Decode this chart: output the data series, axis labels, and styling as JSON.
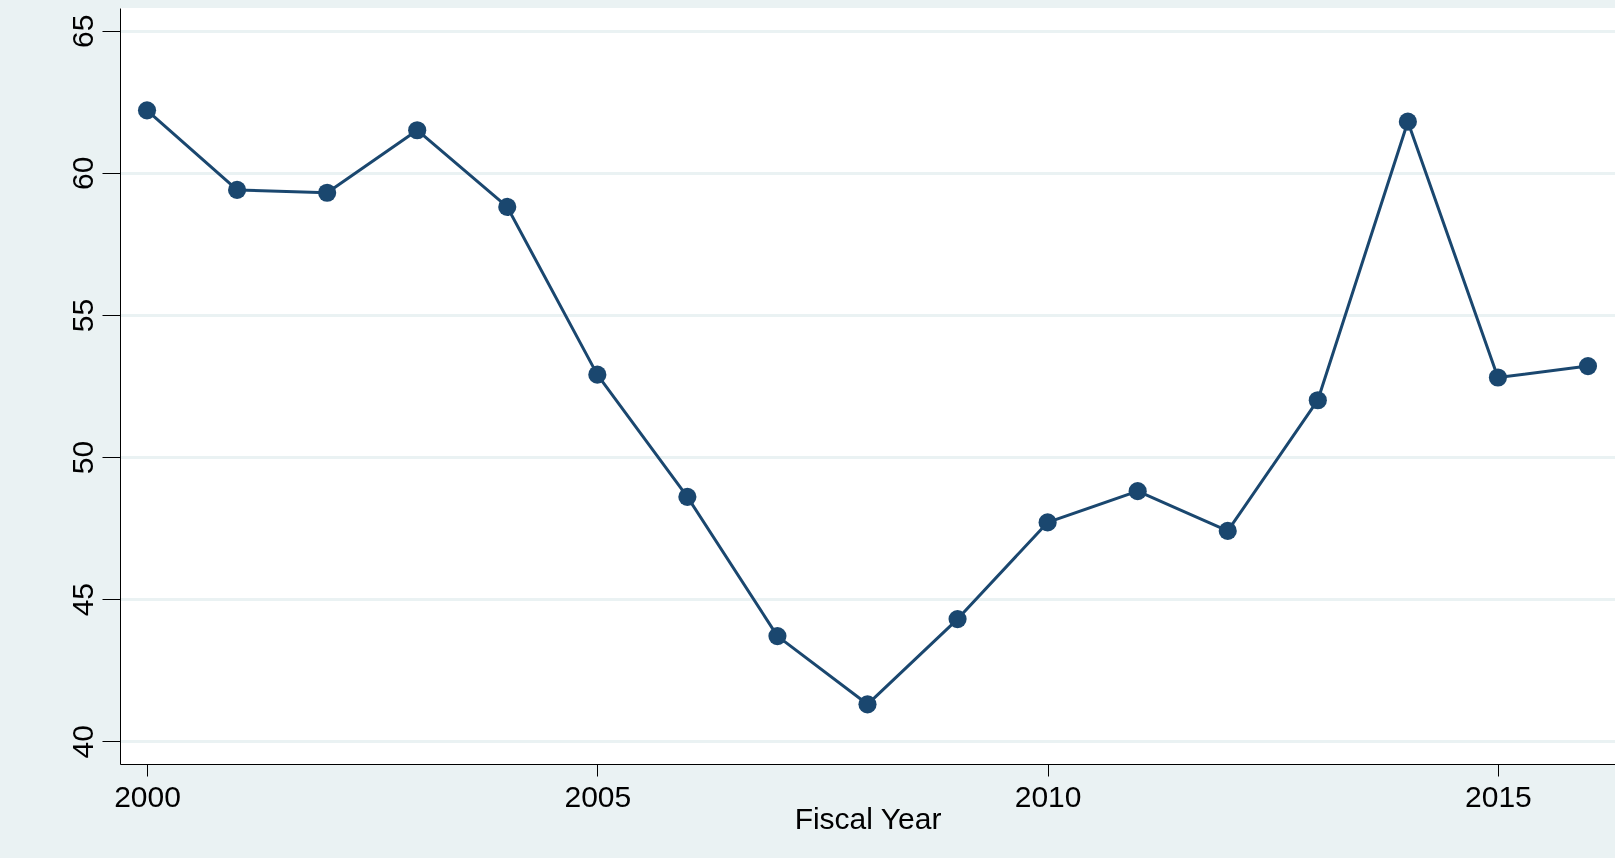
{
  "chart_data": {
    "type": "line",
    "xlabel": "Fiscal Year",
    "x": [
      2000,
      2001,
      2002,
      2003,
      2004,
      2005,
      2006,
      2007,
      2008,
      2009,
      2010,
      2011,
      2012,
      2013,
      2014,
      2015,
      2016
    ],
    "series": [
      {
        "color": "#1a476f",
        "values": [
          62.2,
          59.4,
          59.3,
          61.5,
          58.8,
          52.9,
          48.6,
          43.7,
          41.3,
          44.3,
          47.7,
          48.8,
          47.4,
          52.0,
          61.8,
          52.8,
          53.2
        ]
      }
    ],
    "xlim": [
      1999.7,
      2016.3
    ],
    "xticks": [
      2000,
      2005,
      2010,
      2015
    ],
    "ylim": [
      39.2,
      65.8
    ],
    "yticks": [
      40,
      45,
      50,
      55,
      60,
      65
    ],
    "grid": "y",
    "marker": "circle",
    "line_style": "solid"
  }
}
